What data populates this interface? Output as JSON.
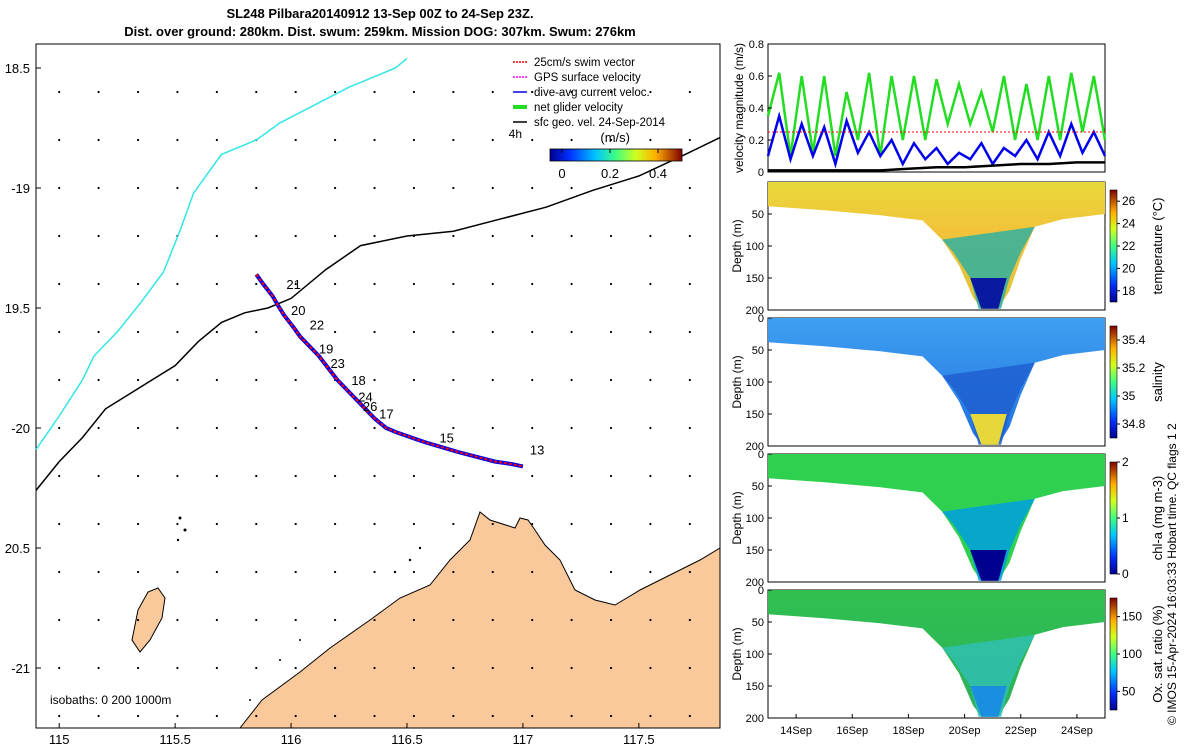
{
  "titles": {
    "line1": "SL248 Pilbara20140912 13-Sep 00Z to 24-Sep 23Z.",
    "line2": "Dist. over ground: 280km. Dist. swum: 259km. Mission DOG: 307km. Swum: 276km"
  },
  "footer": "© IMOS 15-Apr-2024 16:03:33 Hobart time. QC flags 1  2",
  "colors": {
    "coast": "#000000",
    "land": "#f9c89b",
    "isobath_cyan": "#33e6e6",
    "swim_vector": "#ff0000",
    "gps_velocity": "#ff00ff",
    "current": "#0000ee",
    "net_velocity": "#22dd22",
    "sfc_geo": "#000000"
  },
  "chart_data": [
    {
      "type": "line",
      "panel": "map",
      "xlim": [
        114.9,
        117.85
      ],
      "ylim": [
        -21.25,
        -18.4
      ],
      "xticks": [
        115,
        115.5,
        116,
        116.5,
        117,
        117.5
      ],
      "xtick_labels": [
        "115",
        "115.5",
        "116",
        "116.5",
        "117",
        "117.5"
      ],
      "yticks": [
        -18.5,
        -19,
        -19.5,
        -20,
        -20.5,
        -21
      ],
      "ytick_labels": [
        "18.5",
        "-19",
        "19.5",
        "-20",
        "20.5",
        "-21"
      ],
      "legend": {
        "placement": "top-right",
        "items": [
          {
            "label": "25cm/s swim vector",
            "color": "#ff0000"
          },
          {
            "label": "GPS surface velocity",
            "color": "#ff00ff"
          },
          {
            "label": "dive-avg current veloc.",
            "color": "#0000ee"
          },
          {
            "label": "net glider velocity",
            "color": "#22dd22"
          },
          {
            "label": "sfc geo. vel. 24-Sep-2014",
            "color": "#000000"
          }
        ]
      },
      "colorbar": {
        "title": "(m/s)",
        "ticks": [
          0,
          0.2,
          0.4
        ],
        "tick_labels": [
          "0",
          "0.2",
          "0.4"
        ],
        "range": [
          -0.05,
          0.5
        ],
        "side_label": "4h"
      },
      "isobath_text": "isobaths: 0    200  1000m",
      "track_day_labels": [
        {
          "text": "21",
          "x": 115.98,
          "y": -19.42
        },
        {
          "text": "20",
          "x": 116.0,
          "y": -19.53
        },
        {
          "text": "22",
          "x": 116.08,
          "y": -19.59
        },
        {
          "text": "19",
          "x": 116.12,
          "y": -19.69
        },
        {
          "text": "23",
          "x": 116.17,
          "y": -19.75
        },
        {
          "text": "18",
          "x": 116.26,
          "y": -19.82
        },
        {
          "text": "24",
          "x": 116.29,
          "y": -19.89
        },
        {
          "text": "26",
          "x": 116.31,
          "y": -19.93
        },
        {
          "text": "17",
          "x": 116.38,
          "y": -19.96
        },
        {
          "text": "15",
          "x": 116.64,
          "y": -20.06
        },
        {
          "text": "13",
          "x": 117.03,
          "y": -20.11
        }
      ],
      "glider_track": {
        "lon": [
          115.85,
          115.88,
          115.92,
          115.95,
          115.97,
          116.01,
          116.04,
          116.08,
          116.12,
          116.16,
          116.2,
          116.26,
          116.31,
          116.36,
          116.41,
          116.46,
          116.52,
          116.58,
          116.65,
          116.72,
          116.8,
          116.88,
          116.95,
          117.0
        ],
        "lat": [
          -19.36,
          -19.4,
          -19.45,
          -19.5,
          -19.53,
          -19.58,
          -19.62,
          -19.66,
          -19.7,
          -19.75,
          -19.8,
          -19.86,
          -19.91,
          -19.96,
          -20.0,
          -20.02,
          -20.04,
          -20.06,
          -20.08,
          -20.1,
          -20.12,
          -20.14,
          -20.15,
          -20.16
        ]
      },
      "geo_velocity_contour": {
        "lon": [
          114.9,
          115.0,
          115.1,
          115.2,
          115.35,
          115.5,
          115.6,
          115.7,
          115.8,
          115.9,
          116.0,
          116.15,
          116.3,
          116.5,
          116.7,
          116.9,
          117.1,
          117.3,
          117.5,
          117.7,
          117.85
        ],
        "lat": [
          -20.26,
          -20.14,
          -20.04,
          -19.92,
          -19.83,
          -19.74,
          -19.64,
          -19.56,
          -19.52,
          -19.5,
          -19.46,
          -19.34,
          -19.24,
          -19.2,
          -19.18,
          -19.13,
          -19.08,
          -19.01,
          -18.95,
          -18.86,
          -18.79
        ]
      },
      "isobath_cyan_line": {
        "lon": [
          114.9,
          115.0,
          115.1,
          115.15,
          115.25,
          115.35,
          115.45,
          115.52,
          115.58,
          115.7,
          115.85,
          115.95,
          116.05,
          116.15,
          116.25,
          116.45,
          116.5
        ],
        "lat": [
          -20.09,
          -19.95,
          -19.8,
          -19.7,
          -19.6,
          -19.48,
          -19.35,
          -19.18,
          -19.02,
          -18.86,
          -18.8,
          -18.73,
          -18.68,
          -18.63,
          -18.58,
          -18.5,
          -18.46
        ]
      }
    },
    {
      "type": "line",
      "panel": "velocity",
      "ylabel": "velocity magnitude (m/s)",
      "ylim": [
        0,
        0.8
      ],
      "yticks": [
        0,
        0.2,
        0.4,
        0.6,
        0.8
      ],
      "ytick_labels": [
        "0",
        "0.2",
        "0.4",
        "0.6",
        "0.8"
      ],
      "xlim_days": [
        13,
        25
      ],
      "series": [
        {
          "color": "#22dd22",
          "x": [
            13.0,
            13.4,
            13.8,
            14.2,
            14.6,
            15.0,
            15.4,
            15.8,
            16.2,
            16.6,
            17.0,
            17.4,
            17.8,
            18.2,
            18.6,
            19.0,
            19.4,
            19.8,
            20.2,
            20.6,
            21.0,
            21.4,
            21.8,
            22.2,
            22.6,
            23.0,
            23.4,
            23.8,
            24.2,
            24.6,
            25.0
          ],
          "values": [
            0.35,
            0.62,
            0.1,
            0.6,
            0.12,
            0.6,
            0.1,
            0.5,
            0.2,
            0.62,
            0.1,
            0.6,
            0.2,
            0.6,
            0.2,
            0.58,
            0.3,
            0.55,
            0.3,
            0.5,
            0.25,
            0.6,
            0.2,
            0.55,
            0.2,
            0.6,
            0.2,
            0.62,
            0.25,
            0.6,
            0.2
          ]
        },
        {
          "color": "#0000ee",
          "x": [
            13.0,
            13.4,
            13.8,
            14.2,
            14.6,
            15.0,
            15.4,
            15.8,
            16.2,
            16.6,
            17.0,
            17.4,
            17.8,
            18.2,
            18.6,
            19.0,
            19.4,
            19.8,
            20.2,
            20.6,
            21.0,
            21.4,
            21.8,
            22.2,
            22.6,
            23.0,
            23.4,
            23.8,
            24.2,
            24.6,
            25.0
          ],
          "values": [
            0.1,
            0.35,
            0.08,
            0.3,
            0.1,
            0.28,
            0.05,
            0.32,
            0.12,
            0.25,
            0.1,
            0.2,
            0.05,
            0.18,
            0.08,
            0.15,
            0.05,
            0.12,
            0.08,
            0.18,
            0.05,
            0.15,
            0.1,
            0.2,
            0.08,
            0.25,
            0.1,
            0.3,
            0.12,
            0.25,
            0.1
          ]
        },
        {
          "color": "#ff0000",
          "x": [
            13.0,
            14.0,
            15.0,
            16.0,
            17.0,
            18.0,
            19.0,
            20.0,
            21.0,
            22.0,
            23.0,
            24.0,
            25.0
          ],
          "values": [
            0.25,
            0.25,
            0.25,
            0.25,
            0.25,
            0.25,
            0.25,
            0.25,
            0.25,
            0.25,
            0.25,
            0.25,
            0.25
          ]
        },
        {
          "color": "#000000",
          "x": [
            13.0,
            14.0,
            15.0,
            16.0,
            17.0,
            18.0,
            19.0,
            20.0,
            21.0,
            22.0,
            23.0,
            24.0,
            25.0
          ],
          "values": [
            0.01,
            0.01,
            0.01,
            0.01,
            0.01,
            0.02,
            0.03,
            0.03,
            0.04,
            0.05,
            0.05,
            0.06,
            0.06
          ]
        }
      ]
    },
    {
      "type": "heatmap",
      "panel": "temperature",
      "ylabel": "Depth (m)",
      "cbar_label": "temperature (°C)",
      "ylim": [
        200,
        0
      ],
      "yticks": [
        50,
        100,
        150,
        200
      ],
      "cbar_ticks": [
        18,
        20,
        22,
        24,
        26
      ],
      "cbar_range": [
        17,
        27
      ]
    },
    {
      "type": "heatmap",
      "panel": "salinity",
      "ylabel": "Depth (m)",
      "cbar_label": "salinity",
      "ylim": [
        200,
        0
      ],
      "yticks": [
        0,
        50,
        100,
        150,
        200
      ],
      "cbar_ticks": [
        34.8,
        35,
        35.2,
        35.4
      ],
      "cbar_range": [
        34.7,
        35.5
      ]
    },
    {
      "type": "heatmap",
      "panel": "chl-a",
      "ylabel": "Depth (m)",
      "cbar_label": "chl-a (mg m-3)",
      "ylim": [
        200,
        0
      ],
      "yticks": [
        0,
        50,
        100,
        150,
        200
      ],
      "cbar_ticks": [
        0,
        1,
        2
      ],
      "cbar_range": [
        0,
        2
      ]
    },
    {
      "type": "heatmap",
      "panel": "oxygen",
      "ylabel": "Depth (m)",
      "cbar_label": "Ox. sat. ratio (%)",
      "ylim": [
        200,
        0
      ],
      "yticks": [
        0,
        50,
        100,
        150,
        200
      ],
      "cbar_ticks": [
        50,
        100,
        150
      ],
      "cbar_range": [
        25,
        175
      ],
      "xticks": [
        14,
        16,
        18,
        20,
        22,
        24
      ],
      "xtick_labels": [
        "14Sep",
        "16Sep",
        "18Sep",
        "20Sep",
        "22Sep",
        "24Sep"
      ]
    }
  ]
}
